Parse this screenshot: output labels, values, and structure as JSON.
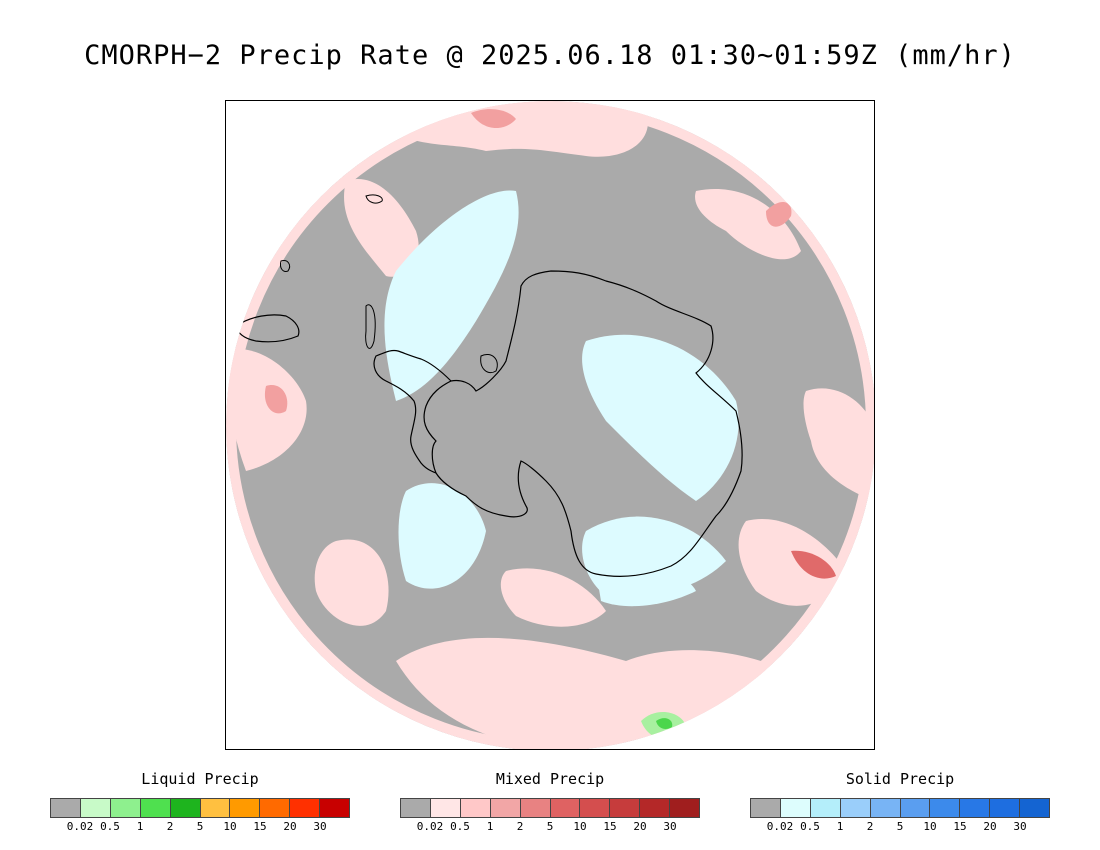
{
  "title": "CMORPH−2 Precip Rate @ 2025.06.18 01:30~01:59Z (mm/hr)",
  "map": {
    "projection": "south polar stereographic",
    "colors": {
      "no_precip": "#aaaaaa",
      "mixed_light": "#ffdede",
      "mixed_moderate": "#f2a0a0",
      "mixed_heavy": "#e06a6a",
      "solid_light": "#ddfbff",
      "liquid_light": "#a8f0a0",
      "liquid_moderate": "#4cd64c",
      "coastline": "#000000"
    }
  },
  "legends": [
    {
      "id": "liquid",
      "title": "Liquid Precip",
      "colors": [
        "#aaaaaa",
        "#c8fac8",
        "#8ef08e",
        "#4fe04f",
        "#1eb41e",
        "#ffc040",
        "#ff9a00",
        "#ff6a00",
        "#ff3000",
        "#c80000"
      ],
      "ticks": [
        "0.02",
        "0.5",
        "1",
        "2",
        "5",
        "10",
        "15",
        "20",
        "30"
      ]
    },
    {
      "id": "mixed",
      "title": "Mixed Precip",
      "colors": [
        "#aaaaaa",
        "#ffe6e6",
        "#ffc8c8",
        "#f2a6a6",
        "#e88282",
        "#df6262",
        "#d44e4e",
        "#c63c3c",
        "#b42828",
        "#a01e1e"
      ],
      "ticks": [
        "0.02",
        "0.5",
        "1",
        "2",
        "5",
        "10",
        "15",
        "20",
        "30"
      ]
    },
    {
      "id": "solid",
      "title": "Solid Precip",
      "colors": [
        "#aaaaaa",
        "#ddfdfd",
        "#b4eefa",
        "#9acefa",
        "#78b4f5",
        "#5a9ef0",
        "#3c8aeb",
        "#2878e6",
        "#1e6ee0",
        "#1464d2"
      ],
      "ticks": [
        "0.02",
        "0.5",
        "1",
        "2",
        "5",
        "10",
        "15",
        "20",
        "30"
      ]
    }
  ]
}
